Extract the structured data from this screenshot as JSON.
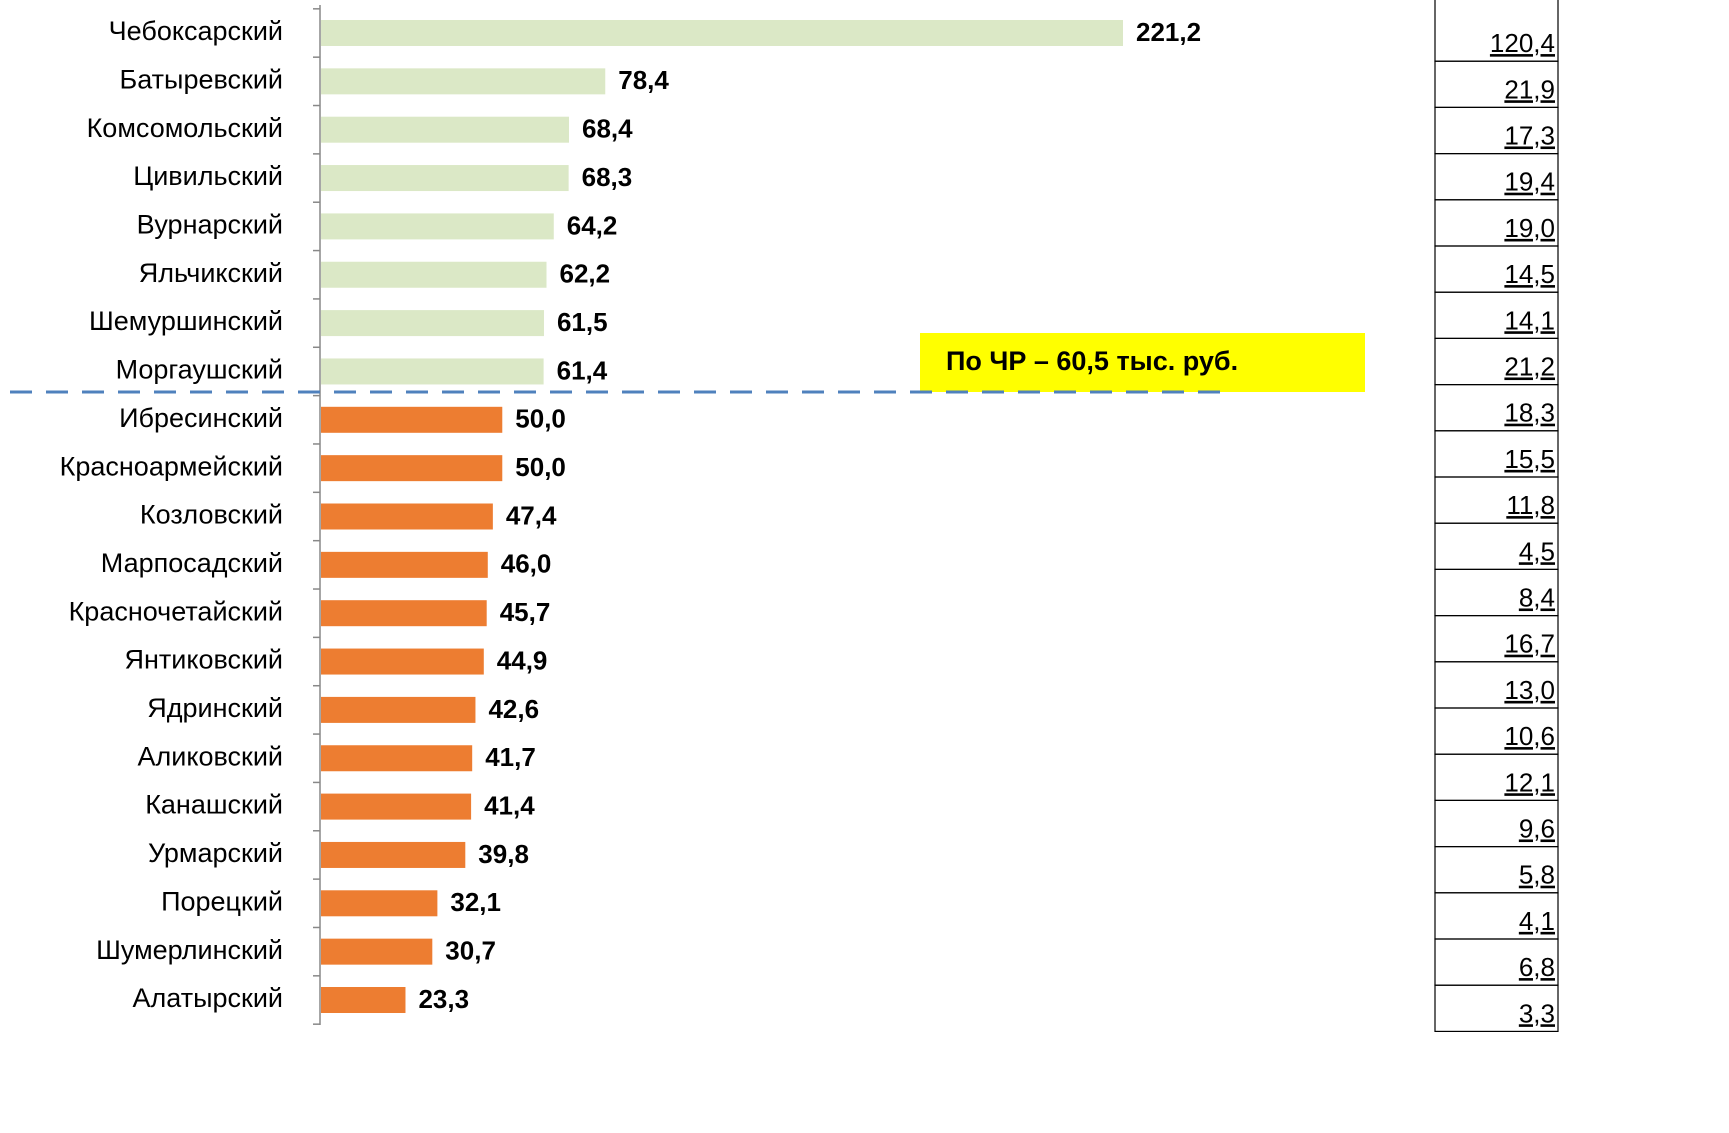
{
  "chart_data": {
    "type": "bar",
    "orientation": "horizontal",
    "categories": [
      "Чебоксарский",
      "Батыревский",
      "Комсомольский",
      "Цивильский",
      "Вурнарский",
      "Яльчикский",
      "Шемуршинский",
      "Моргаушский",
      "Ибресинский",
      "Красноармейский",
      "Козловский",
      "Марпосадский",
      "Красночетайский",
      "Янтиковский",
      "Ядринский",
      "Аликовский",
      "Канашский",
      "Урмарский",
      "Порецкий",
      "Шумерлинский",
      "Алатырский"
    ],
    "values": [
      221.2,
      78.4,
      68.4,
      68.3,
      64.2,
      62.2,
      61.5,
      61.4,
      50.0,
      50.0,
      47.4,
      46.0,
      45.7,
      44.9,
      42.6,
      41.7,
      41.4,
      39.8,
      32.1,
      30.7,
      23.3
    ],
    "value_labels": [
      "221,2",
      "78,4",
      "68,4",
      "68,3",
      "64,2",
      "62,2",
      "61,5",
      "61,4",
      "50,0",
      "50,0",
      "47,4",
      "46,0",
      "45,7",
      "44,9",
      "42,6",
      "41,7",
      "41,4",
      "39,8",
      "32,1",
      "30,7",
      "23,3"
    ],
    "colors": [
      "#dbe8c6",
      "#dbe8c6",
      "#dbe8c6",
      "#dbe8c6",
      "#dbe8c6",
      "#dbe8c6",
      "#dbe8c6",
      "#dbe8c6",
      "#ed7d31",
      "#ed7d31",
      "#ed7d31",
      "#ed7d31",
      "#ed7d31",
      "#ed7d31",
      "#ed7d31",
      "#ed7d31",
      "#ed7d31",
      "#ed7d31",
      "#ed7d31",
      "#ed7d31",
      "#ed7d31"
    ],
    "annotation": "По ЧР – 60,5 тыс. руб."
  },
  "table": {
    "values": [
      "120,4",
      "21,9",
      "17,3",
      "19,4",
      "19,0",
      "14,5",
      "14,1",
      "21,2",
      "18,3",
      "15,5",
      "11,8",
      "4,5",
      "8,4",
      "16,7",
      "13,0",
      "10,6",
      "12,1",
      "9,6",
      "5,8",
      "4,1",
      "6,8",
      "3,3"
    ]
  }
}
